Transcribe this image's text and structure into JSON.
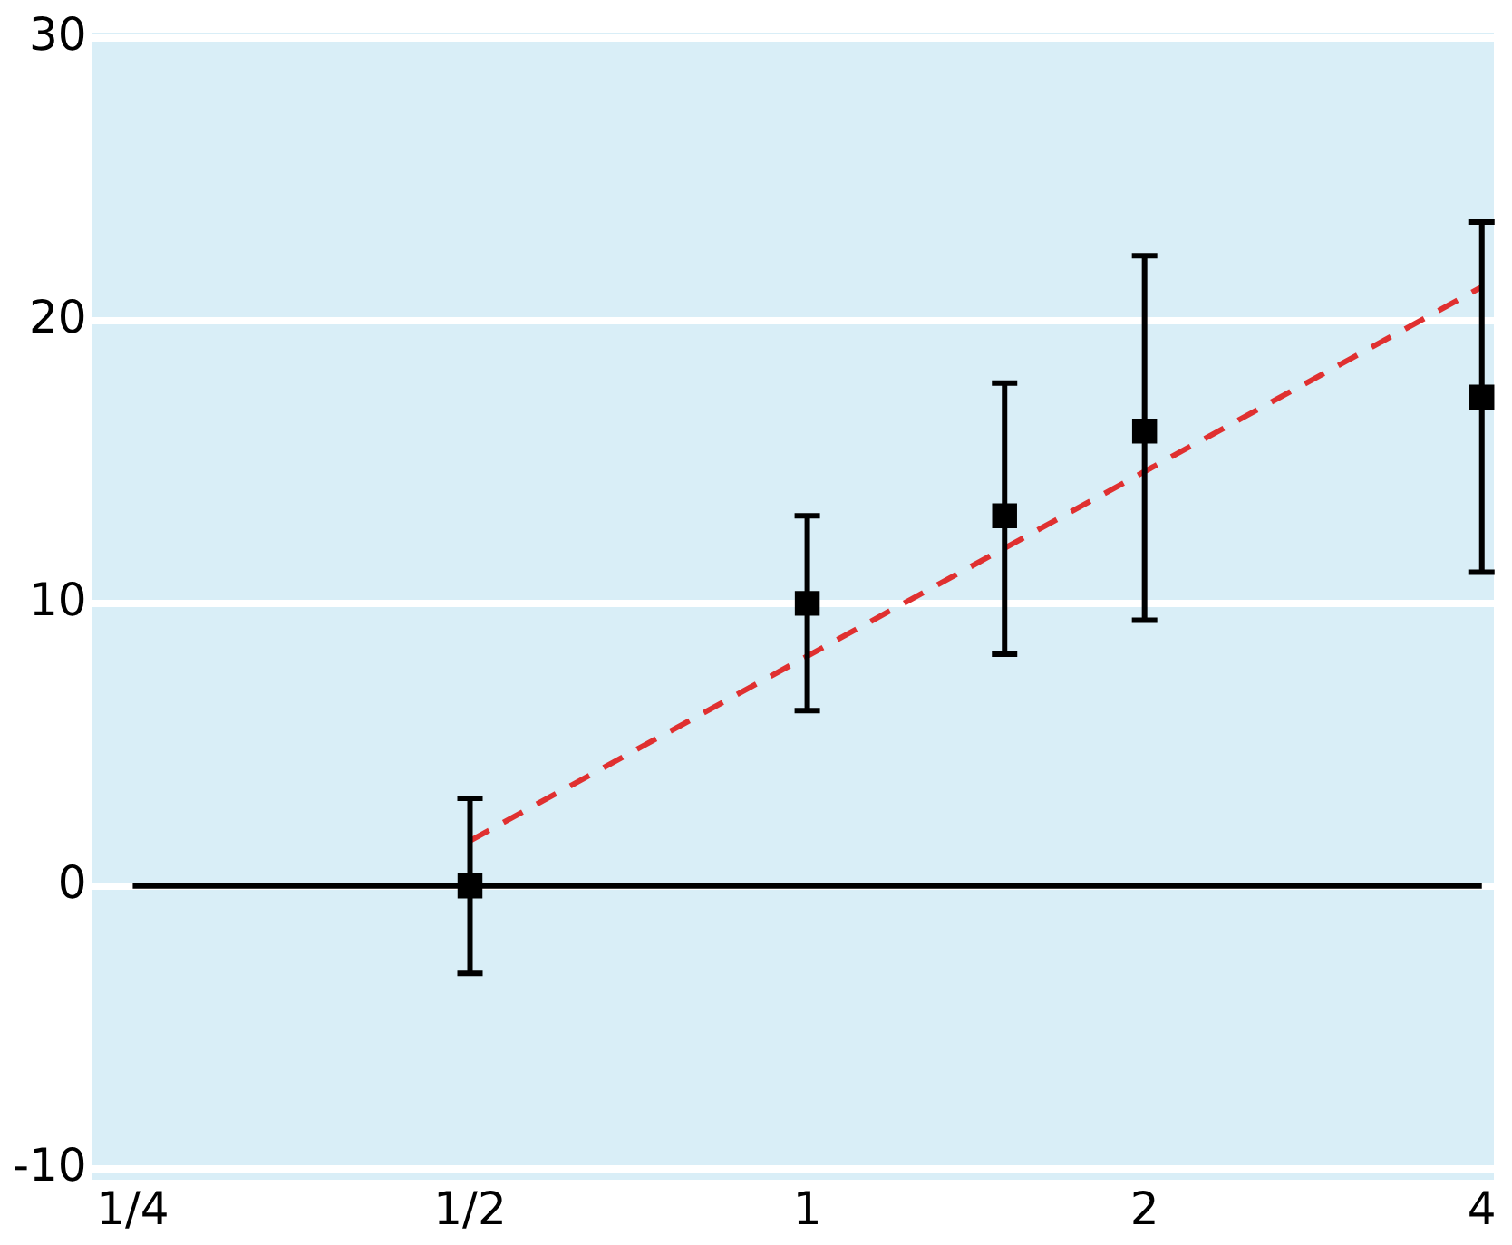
{
  "chart_data": {
    "type": "scatter",
    "log": "x",
    "grid": "y",
    "legend": false,
    "xlim": [
      0.23,
      4.1
    ],
    "ylim": [
      -10.4,
      30.2
    ],
    "xticks": [
      {
        "value": 0.25,
        "label": "1/4"
      },
      {
        "value": 0.5,
        "label": "1/2"
      },
      1,
      2,
      4
    ],
    "yticks": [
      -10,
      0,
      10,
      20,
      30
    ],
    "series": [
      {
        "type": "line",
        "color": "#000000",
        "marker": "none",
        "x": [
          0.25,
          4
        ],
        "values": [
          0,
          0
        ]
      },
      {
        "type": "line",
        "color": "#e03030",
        "marker": "none",
        "line_style": "dashed",
        "x": [
          0.5,
          4
        ],
        "values": [
          1.6,
          21.2
        ]
      },
      {
        "color": "#000000",
        "marker": "square",
        "x": [
          0.5,
          1,
          1.5,
          2,
          4
        ],
        "values": [
          0,
          10,
          13.1,
          16.1,
          17.3
        ],
        "errors": [
          [
            -3.1,
            3.1
          ],
          [
            6.2,
            13.1
          ],
          [
            8.2,
            17.8
          ],
          [
            9.4,
            22.3
          ],
          [
            11.1,
            23.5
          ]
        ]
      }
    ]
  }
}
